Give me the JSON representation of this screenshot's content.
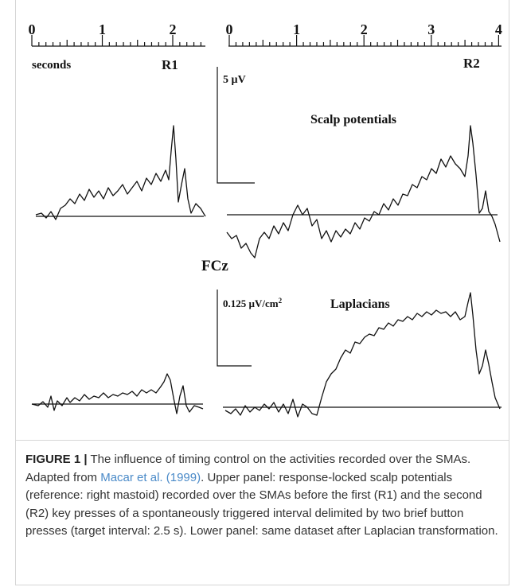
{
  "figure": {
    "left_axis": {
      "ticks": [
        "0",
        "1",
        "2"
      ],
      "unit": "seconds",
      "label": "R1"
    },
    "right_axis": {
      "ticks": [
        "0",
        "1",
        "2",
        "3",
        "4"
      ],
      "label": "R2"
    },
    "scale_top": "5 µV",
    "title_top": "Scalp potentials",
    "electrode": "FCz",
    "scale_bottom": "0.125 µV/cm",
    "scale_bottom_sup": "2",
    "title_bottom": "Laplacians"
  },
  "caption": {
    "label": "FIGURE 1 |",
    "text_before": " The influence of timing control on the activities recorded over the SMAs. Adapted from ",
    "link": "Macar et al. (1999)",
    "text_after": ". Upper panel: response-locked scalp potentials (reference: right mastoid) recorded over the SMAs before the first (R1) and the second (R2) key presses of a spontaneously triggered interval delimited by two brief button presses (target interval: 2.5 s). Lower panel: same dataset after Laplacian transformation."
  }
}
